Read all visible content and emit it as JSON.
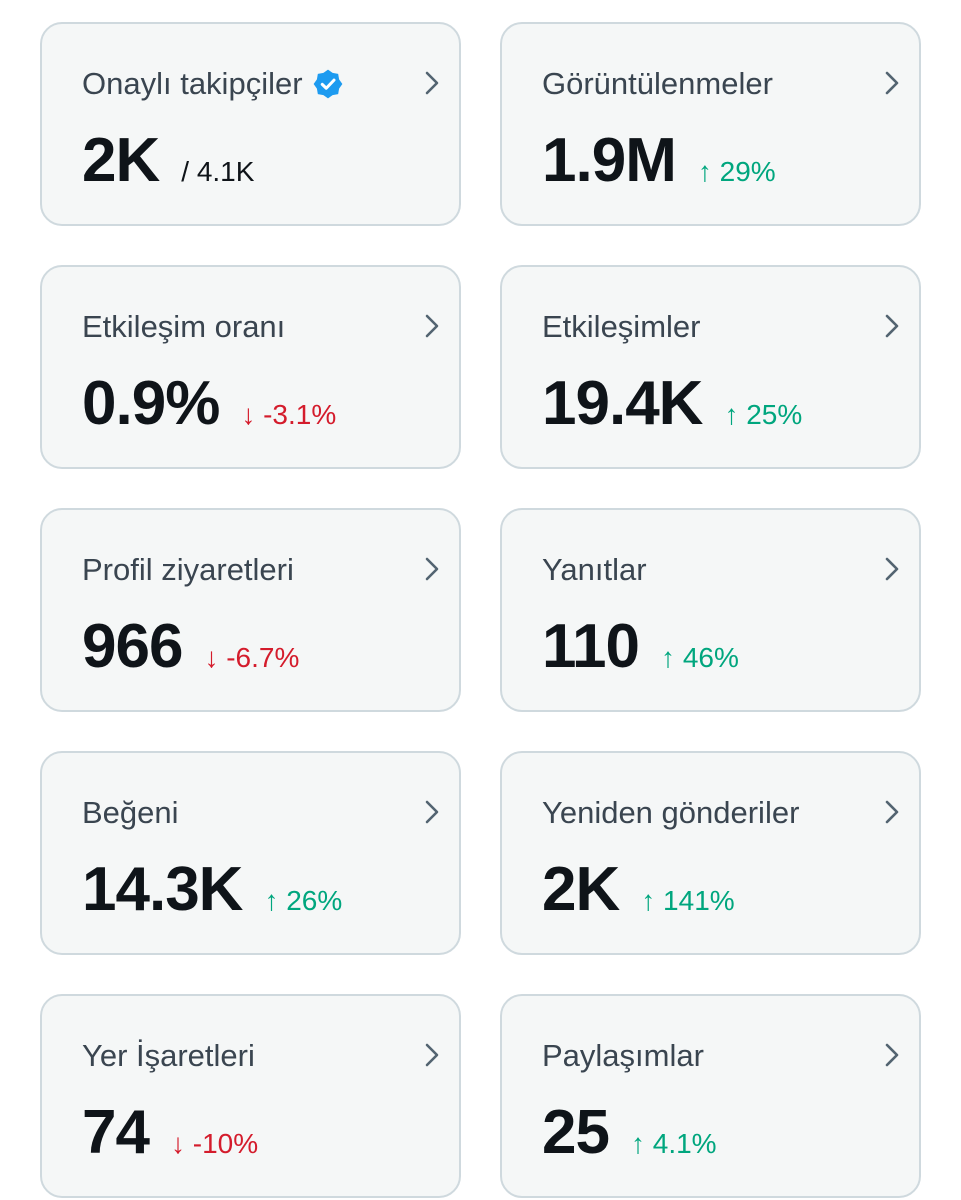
{
  "colors": {
    "positive": "#00a67e",
    "negative": "#d41c2c",
    "verified_badge": "#1d9bf0",
    "card_background": "#f5f7f7",
    "card_border": "#cfd9de"
  },
  "metrics": [
    {
      "title": "Onaylı takipçiler",
      "value": "2K",
      "total": "/ 4.1K",
      "change": "",
      "direction": "",
      "badge": "verified-badge-icon"
    },
    {
      "title": "Görüntülenmeler",
      "value": "1.9M",
      "total": "",
      "change": "29%",
      "direction": "up",
      "badge": ""
    },
    {
      "title": "Etkileşim oranı",
      "value": "0.9%",
      "total": "",
      "change": "-3.1%",
      "direction": "down",
      "badge": ""
    },
    {
      "title": "Etkileşimler",
      "value": "19.4K",
      "total": "",
      "change": "25%",
      "direction": "up",
      "badge": ""
    },
    {
      "title": "Profil ziyaretleri",
      "value": "966",
      "total": "",
      "change": "-6.7%",
      "direction": "down",
      "badge": ""
    },
    {
      "title": "Yanıtlar",
      "value": "110",
      "total": "",
      "change": "46%",
      "direction": "up",
      "badge": ""
    },
    {
      "title": "Beğeni",
      "value": "14.3K",
      "total": "",
      "change": "26%",
      "direction": "up",
      "badge": ""
    },
    {
      "title": "Yeniden gönderiler",
      "value": "2K",
      "total": "",
      "change": "141%",
      "direction": "up",
      "badge": ""
    },
    {
      "title": "Yer İşaretleri",
      "value": "74",
      "total": "",
      "change": "-10%",
      "direction": "down",
      "badge": ""
    },
    {
      "title": "Paylaşımlar",
      "value": "25",
      "total": "",
      "change": "4.1%",
      "direction": "up",
      "badge": ""
    }
  ]
}
